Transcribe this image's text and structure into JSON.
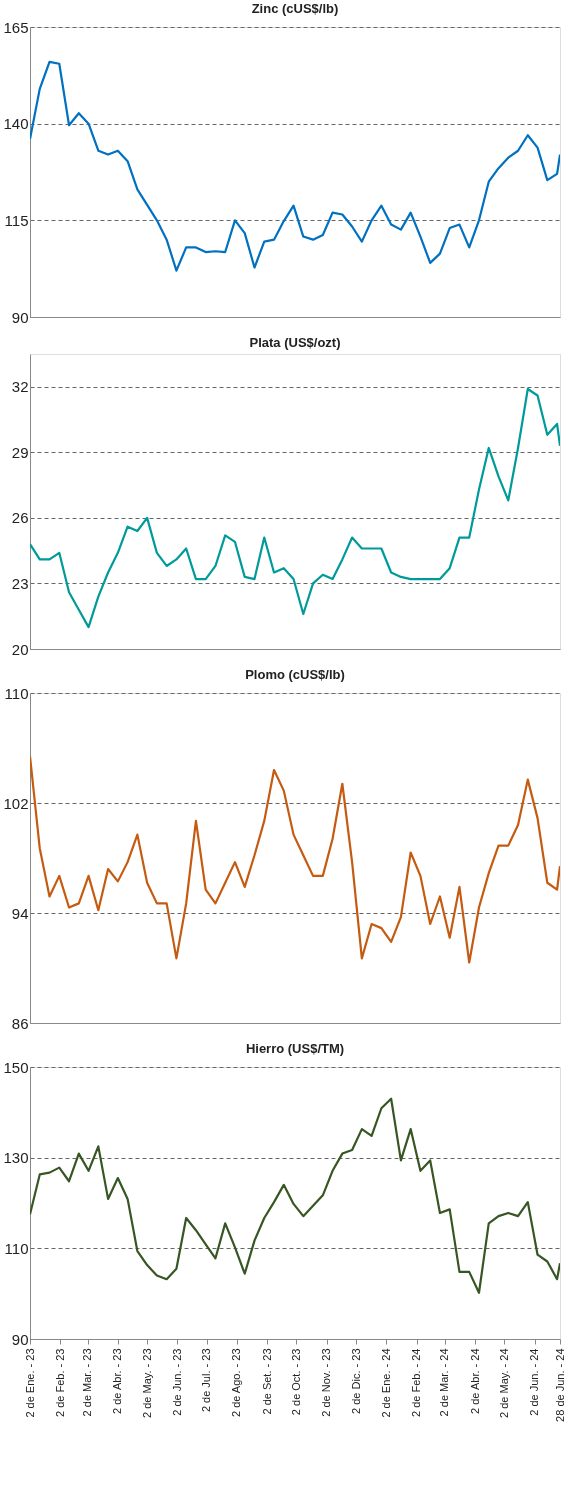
{
  "chart_data": [
    {
      "type": "line",
      "title": "Zinc (cUS$/lb)",
      "x": [
        "2023-01-02",
        "2023-01-12",
        "2023-01-22",
        "2023-02-01",
        "2023-02-11",
        "2023-02-21",
        "2023-03-03",
        "2023-03-13",
        "2023-03-23",
        "2023-04-02",
        "2023-04-12",
        "2023-04-22",
        "2023-05-02",
        "2023-05-12",
        "2023-05-22",
        "2023-06-01",
        "2023-06-11",
        "2023-06-21",
        "2023-07-01",
        "2023-07-11",
        "2023-07-21",
        "2023-07-31",
        "2023-08-10",
        "2023-08-20",
        "2023-08-30",
        "2023-09-09",
        "2023-09-19",
        "2023-09-29",
        "2023-10-09",
        "2023-10-19",
        "2023-10-29",
        "2023-11-08",
        "2023-11-18",
        "2023-11-28",
        "2023-12-08",
        "2023-12-18",
        "2023-12-28",
        "2024-01-07",
        "2024-01-17",
        "2024-01-27",
        "2024-02-06",
        "2024-02-16",
        "2024-02-26",
        "2024-03-07",
        "2024-03-17",
        "2024-03-27",
        "2024-04-06",
        "2024-04-16",
        "2024-04-26",
        "2024-05-06",
        "2024-05-16",
        "2024-05-26",
        "2024-06-05",
        "2024-06-15",
        "2024-06-25",
        "2024-06-28"
      ],
      "series": [
        {
          "color": "#0070c0",
          "values": [
            136,
            149,
            156,
            155.5,
            139.6,
            142.7,
            140,
            133,
            132,
            133,
            130.3,
            123,
            119,
            115,
            110,
            102,
            108,
            108,
            106.8,
            107,
            106.8,
            115,
            111.7,
            102.8,
            109.5,
            110,
            114.8,
            118.8,
            110.8,
            110,
            111.2,
            117,
            116.5,
            113.4,
            109.5,
            115,
            118.8,
            113.9,
            112.6,
            117,
            110.8,
            104,
            106.4,
            113,
            113.9,
            108,
            115,
            125,
            128.5,
            131.2,
            133,
            137,
            133.8,
            125.4,
            127,
            132
          ]
        }
      ],
      "xlim": [
        "2023-01-02",
        "2024-06-28"
      ],
      "ylim": [
        90,
        165
      ],
      "yticks": [
        90,
        115,
        140,
        165
      ],
      "grid": "y",
      "tick_labels": "y"
    },
    {
      "type": "line",
      "title": "Plata (US$/ozt)",
      "x": [
        "2023-01-02",
        "2023-01-12",
        "2023-01-22",
        "2023-02-01",
        "2023-02-11",
        "2023-02-21",
        "2023-03-03",
        "2023-03-13",
        "2023-03-23",
        "2023-04-02",
        "2023-04-12",
        "2023-04-22",
        "2023-05-02",
        "2023-05-12",
        "2023-05-22",
        "2023-06-01",
        "2023-06-11",
        "2023-06-21",
        "2023-07-01",
        "2023-07-11",
        "2023-07-21",
        "2023-07-31",
        "2023-08-10",
        "2023-08-20",
        "2023-08-30",
        "2023-09-09",
        "2023-09-19",
        "2023-09-29",
        "2023-10-09",
        "2023-10-19",
        "2023-10-29",
        "2023-11-08",
        "2023-11-18",
        "2023-11-28",
        "2023-12-08",
        "2023-12-18",
        "2023-12-28",
        "2024-01-07",
        "2024-01-17",
        "2024-01-27",
        "2024-02-06",
        "2024-02-16",
        "2024-02-26",
        "2024-03-07",
        "2024-03-17",
        "2024-03-27",
        "2024-04-06",
        "2024-04-16",
        "2024-04-26",
        "2024-05-06",
        "2024-05-16",
        "2024-05-26",
        "2024-06-05",
        "2024-06-15",
        "2024-06-25",
        "2024-06-28"
      ],
      "series": [
        {
          "color": "#009a9a",
          "values": [
            24.8,
            24.1,
            24.1,
            24.4,
            22.6,
            21.8,
            21.0,
            22.4,
            23.5,
            24.4,
            25.6,
            25.4,
            26.0,
            24.4,
            23.8,
            24.1,
            24.6,
            23.2,
            23.2,
            23.8,
            25.2,
            24.9,
            23.3,
            23.2,
            25.1,
            23.5,
            23.7,
            23.2,
            21.6,
            23.0,
            23.4,
            23.2,
            24.1,
            25.1,
            24.6,
            24.6,
            24.6,
            23.5,
            23.3,
            23.2,
            23.2,
            23.2,
            23.2,
            23.7,
            25.1,
            25.1,
            27.3,
            29.2,
            27.9,
            26.8,
            29.2,
            31.9,
            31.6,
            29.8,
            30.3,
            29.3
          ]
        }
      ],
      "xlim": [
        "2023-01-02",
        "2024-06-28"
      ],
      "ylim": [
        20,
        33.5
      ],
      "yticks": [
        20,
        23,
        26,
        29,
        32
      ],
      "grid": "y",
      "tick_labels": "y"
    },
    {
      "type": "line",
      "title": "Plomo (cUS$/lb)",
      "x": [
        "2023-01-02",
        "2023-01-12",
        "2023-01-22",
        "2023-02-01",
        "2023-02-11",
        "2023-02-21",
        "2023-03-03",
        "2023-03-13",
        "2023-03-23",
        "2023-04-02",
        "2023-04-12",
        "2023-04-22",
        "2023-05-02",
        "2023-05-12",
        "2023-05-22",
        "2023-06-01",
        "2023-06-11",
        "2023-06-21",
        "2023-07-01",
        "2023-07-11",
        "2023-07-21",
        "2023-07-31",
        "2023-08-10",
        "2023-08-20",
        "2023-08-30",
        "2023-09-09",
        "2023-09-19",
        "2023-09-29",
        "2023-10-09",
        "2023-10-19",
        "2023-10-29",
        "2023-11-08",
        "2023-11-18",
        "2023-11-28",
        "2023-12-08",
        "2023-12-18",
        "2023-12-28",
        "2024-01-07",
        "2024-01-17",
        "2024-01-27",
        "2024-02-06",
        "2024-02-16",
        "2024-02-26",
        "2024-03-07",
        "2024-03-17",
        "2024-03-27",
        "2024-04-06",
        "2024-04-16",
        "2024-04-26",
        "2024-05-06",
        "2024-05-16",
        "2024-05-26",
        "2024-06-05",
        "2024-06-15",
        "2024-06-25",
        "2024-06-28"
      ],
      "series": [
        {
          "color": "#c55a11",
          "values": [
            105.4,
            98.7,
            95.2,
            96.7,
            94.4,
            94.7,
            96.7,
            94.2,
            97.2,
            96.3,
            97.7,
            99.7,
            96.2,
            94.7,
            94.7,
            90.7,
            94.7,
            100.7,
            95.7,
            94.7,
            96.2,
            97.7,
            95.9,
            98.2,
            100.7,
            104.4,
            102.9,
            99.7,
            98.2,
            96.7,
            96.7,
            99.4,
            103.4,
            97.7,
            90.7,
            93.2,
            92.9,
            91.9,
            93.7,
            98.4,
            96.7,
            93.2,
            95.2,
            92.2,
            95.9,
            90.4,
            94.4,
            96.9,
            98.9,
            98.9,
            100.4,
            103.7,
            100.9,
            96.2,
            95.7,
            97.4
          ]
        }
      ],
      "xlim": [
        "2023-01-02",
        "2024-06-28"
      ],
      "ylim": [
        86,
        110
      ],
      "yticks": [
        86,
        94,
        102,
        110
      ],
      "grid": "y",
      "tick_labels": "y"
    },
    {
      "type": "line",
      "title": "Hierro (US$/TM)",
      "x": [
        "2023-01-02",
        "2023-01-12",
        "2023-01-22",
        "2023-02-01",
        "2023-02-11",
        "2023-02-21",
        "2023-03-03",
        "2023-03-13",
        "2023-03-23",
        "2023-04-02",
        "2023-04-12",
        "2023-04-22",
        "2023-05-02",
        "2023-05-12",
        "2023-05-22",
        "2023-06-01",
        "2023-06-11",
        "2023-06-21",
        "2023-07-01",
        "2023-07-11",
        "2023-07-21",
        "2023-07-31",
        "2023-08-10",
        "2023-08-20",
        "2023-08-30",
        "2023-09-09",
        "2023-09-19",
        "2023-09-29",
        "2023-10-09",
        "2023-10-19",
        "2023-10-29",
        "2023-11-08",
        "2023-11-18",
        "2023-11-28",
        "2023-12-08",
        "2023-12-18",
        "2023-12-28",
        "2024-01-07",
        "2024-01-17",
        "2024-01-27",
        "2024-02-06",
        "2024-02-16",
        "2024-02-26",
        "2024-03-07",
        "2024-03-17",
        "2024-03-27",
        "2024-04-06",
        "2024-04-16",
        "2024-04-26",
        "2024-05-06",
        "2024-05-16",
        "2024-05-26",
        "2024-06-05",
        "2024-06-15",
        "2024-06-25",
        "2024-06-28"
      ],
      "series": [
        {
          "color": "#375623",
          "values": [
            117.5,
            126.3,
            126.7,
            127.8,
            124.8,
            130.9,
            127.1,
            132.5,
            120.9,
            125.5,
            120.9,
            109.4,
            106.3,
            104.0,
            103.2,
            105.5,
            116.7,
            114,
            110.9,
            107.8,
            115.5,
            110.2,
            104.4,
            111.7,
            116.7,
            120.2,
            124,
            119.8,
            117.1,
            119.4,
            121.7,
            127.1,
            130.9,
            131.7,
            136.3,
            134.8,
            140.9,
            143,
            129.4,
            136.3,
            127.1,
            129.4,
            117.8,
            118.6,
            104.8,
            104.8,
            100.2,
            115.5,
            117.1,
            117.8,
            117.1,
            120.2,
            108.6,
            107.1,
            103.2,
            106.7
          ]
        }
      ],
      "xlim": [
        "2023-01-02",
        "2024-06-28"
      ],
      "ylim": [
        90,
        150
      ],
      "yticks": [
        90,
        110,
        130,
        150
      ],
      "grid": "y",
      "xticks": [
        {
          "value": "2023-01-02",
          "label": "2 de Ene. - 23"
        },
        {
          "value": "2023-02-02",
          "label": "2 de Feb. - 23"
        },
        {
          "value": "2023-03-02",
          "label": "2 de Mar. - 23"
        },
        {
          "value": "2023-04-02",
          "label": "2 de Abr. - 23"
        },
        {
          "value": "2023-05-02",
          "label": "2 de May. - 23"
        },
        {
          "value": "2023-06-02",
          "label": "2 de Jun. - 23"
        },
        {
          "value": "2023-07-02",
          "label": "2 de Jul. - 23"
        },
        {
          "value": "2023-08-02",
          "label": "2 de Ago. - 23"
        },
        {
          "value": "2023-09-02",
          "label": "2 de Set. - 23"
        },
        {
          "value": "2023-10-02",
          "label": "2 de Oct. - 23"
        },
        {
          "value": "2023-11-02",
          "label": "2 de Nov. - 23"
        },
        {
          "value": "2023-12-02",
          "label": "2 de Dic. - 23"
        },
        {
          "value": "2024-01-02",
          "label": "2 de Ene. - 24"
        },
        {
          "value": "2024-02-02",
          "label": "2 de Feb. - 24"
        },
        {
          "value": "2024-03-02",
          "label": "2 de Mar. - 24"
        },
        {
          "value": "2024-04-02",
          "label": "2 de Abr. - 24"
        },
        {
          "value": "2024-05-02",
          "label": "2 de May. - 24"
        },
        {
          "value": "2024-06-02",
          "label": "2 de Jun. - 24"
        },
        {
          "value": "2024-06-28",
          "label": "28 de Jun. - 24"
        }
      ]
    }
  ]
}
